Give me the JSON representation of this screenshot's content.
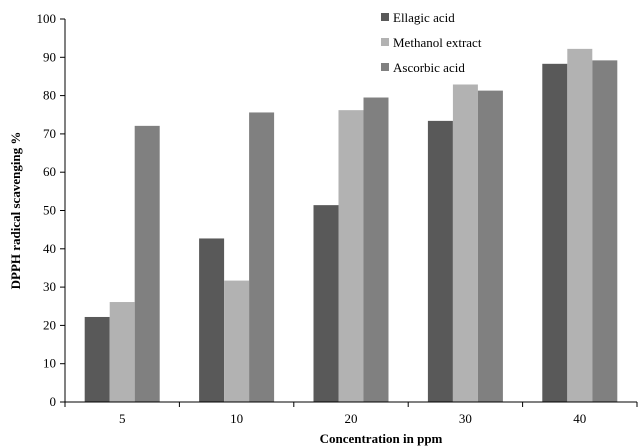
{
  "chart_data": {
    "type": "bar",
    "title": "",
    "xlabel": "Concentration in ppm",
    "ylabel": "DPPH radical scavenging %",
    "ylim": [
      0,
      100
    ],
    "yticks": [
      0,
      10,
      20,
      30,
      40,
      50,
      60,
      70,
      80,
      90,
      100
    ],
    "grid": false,
    "legend_position": "top-right",
    "categories": [
      "5",
      "10",
      "20",
      "30",
      "40"
    ],
    "series": [
      {
        "name": "Ellagic acid",
        "color": "#595959",
        "values": [
          22.2,
          42.7,
          51.4,
          73.4,
          88.3
        ]
      },
      {
        "name": "Methanol extract",
        "color": "#b2b2b2",
        "values": [
          26.1,
          31.7,
          76.2,
          82.9,
          92.2
        ]
      },
      {
        "name": "Ascorbic acid",
        "color": "#808080",
        "values": [
          72.1,
          75.6,
          79.5,
          81.3,
          89.2
        ]
      }
    ]
  }
}
